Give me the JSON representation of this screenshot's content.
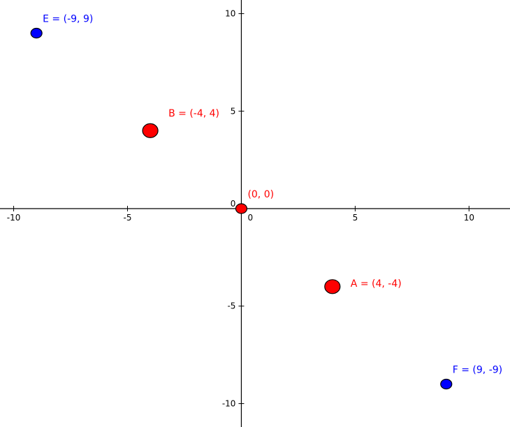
{
  "chart_data": {
    "type": "scatter",
    "title": "",
    "xlabel": "",
    "ylabel": "",
    "xlim": [
      -10.6,
      11.8
    ],
    "ylim": [
      -11.2,
      10.7
    ],
    "grid": false,
    "x_ticks": [
      {
        "value": -10,
        "label": "-10"
      },
      {
        "value": -5,
        "label": "-5"
      },
      {
        "value": 0,
        "label": "0"
      },
      {
        "value": 5,
        "label": "5"
      },
      {
        "value": 10,
        "label": "10"
      }
    ],
    "y_ticks": [
      {
        "value": 10,
        "label": "10"
      },
      {
        "value": 5,
        "label": "5"
      },
      {
        "value": 0,
        "label": "0"
      },
      {
        "value": -5,
        "label": "-5"
      },
      {
        "value": -10,
        "label": "-10"
      }
    ],
    "points": [
      {
        "id": "E",
        "x": -9,
        "y": 9,
        "label": "E = (-9, 9)",
        "color": "#0000ff",
        "size": "small"
      },
      {
        "id": "B",
        "x": -4,
        "y": 4,
        "label": "B = (-4, 4)",
        "color": "#ff0000",
        "size": "large"
      },
      {
        "id": "O",
        "x": 0,
        "y": 0,
        "label": "(0, 0)",
        "color": "#ff0000",
        "size": "small"
      },
      {
        "id": "A",
        "x": 4,
        "y": -4,
        "label": "A = (4, -4)",
        "color": "#ff0000",
        "size": "large"
      },
      {
        "id": "F",
        "x": 9,
        "y": -9,
        "label": "F = (9, -9)",
        "color": "#0000ff",
        "size": "small"
      }
    ]
  }
}
